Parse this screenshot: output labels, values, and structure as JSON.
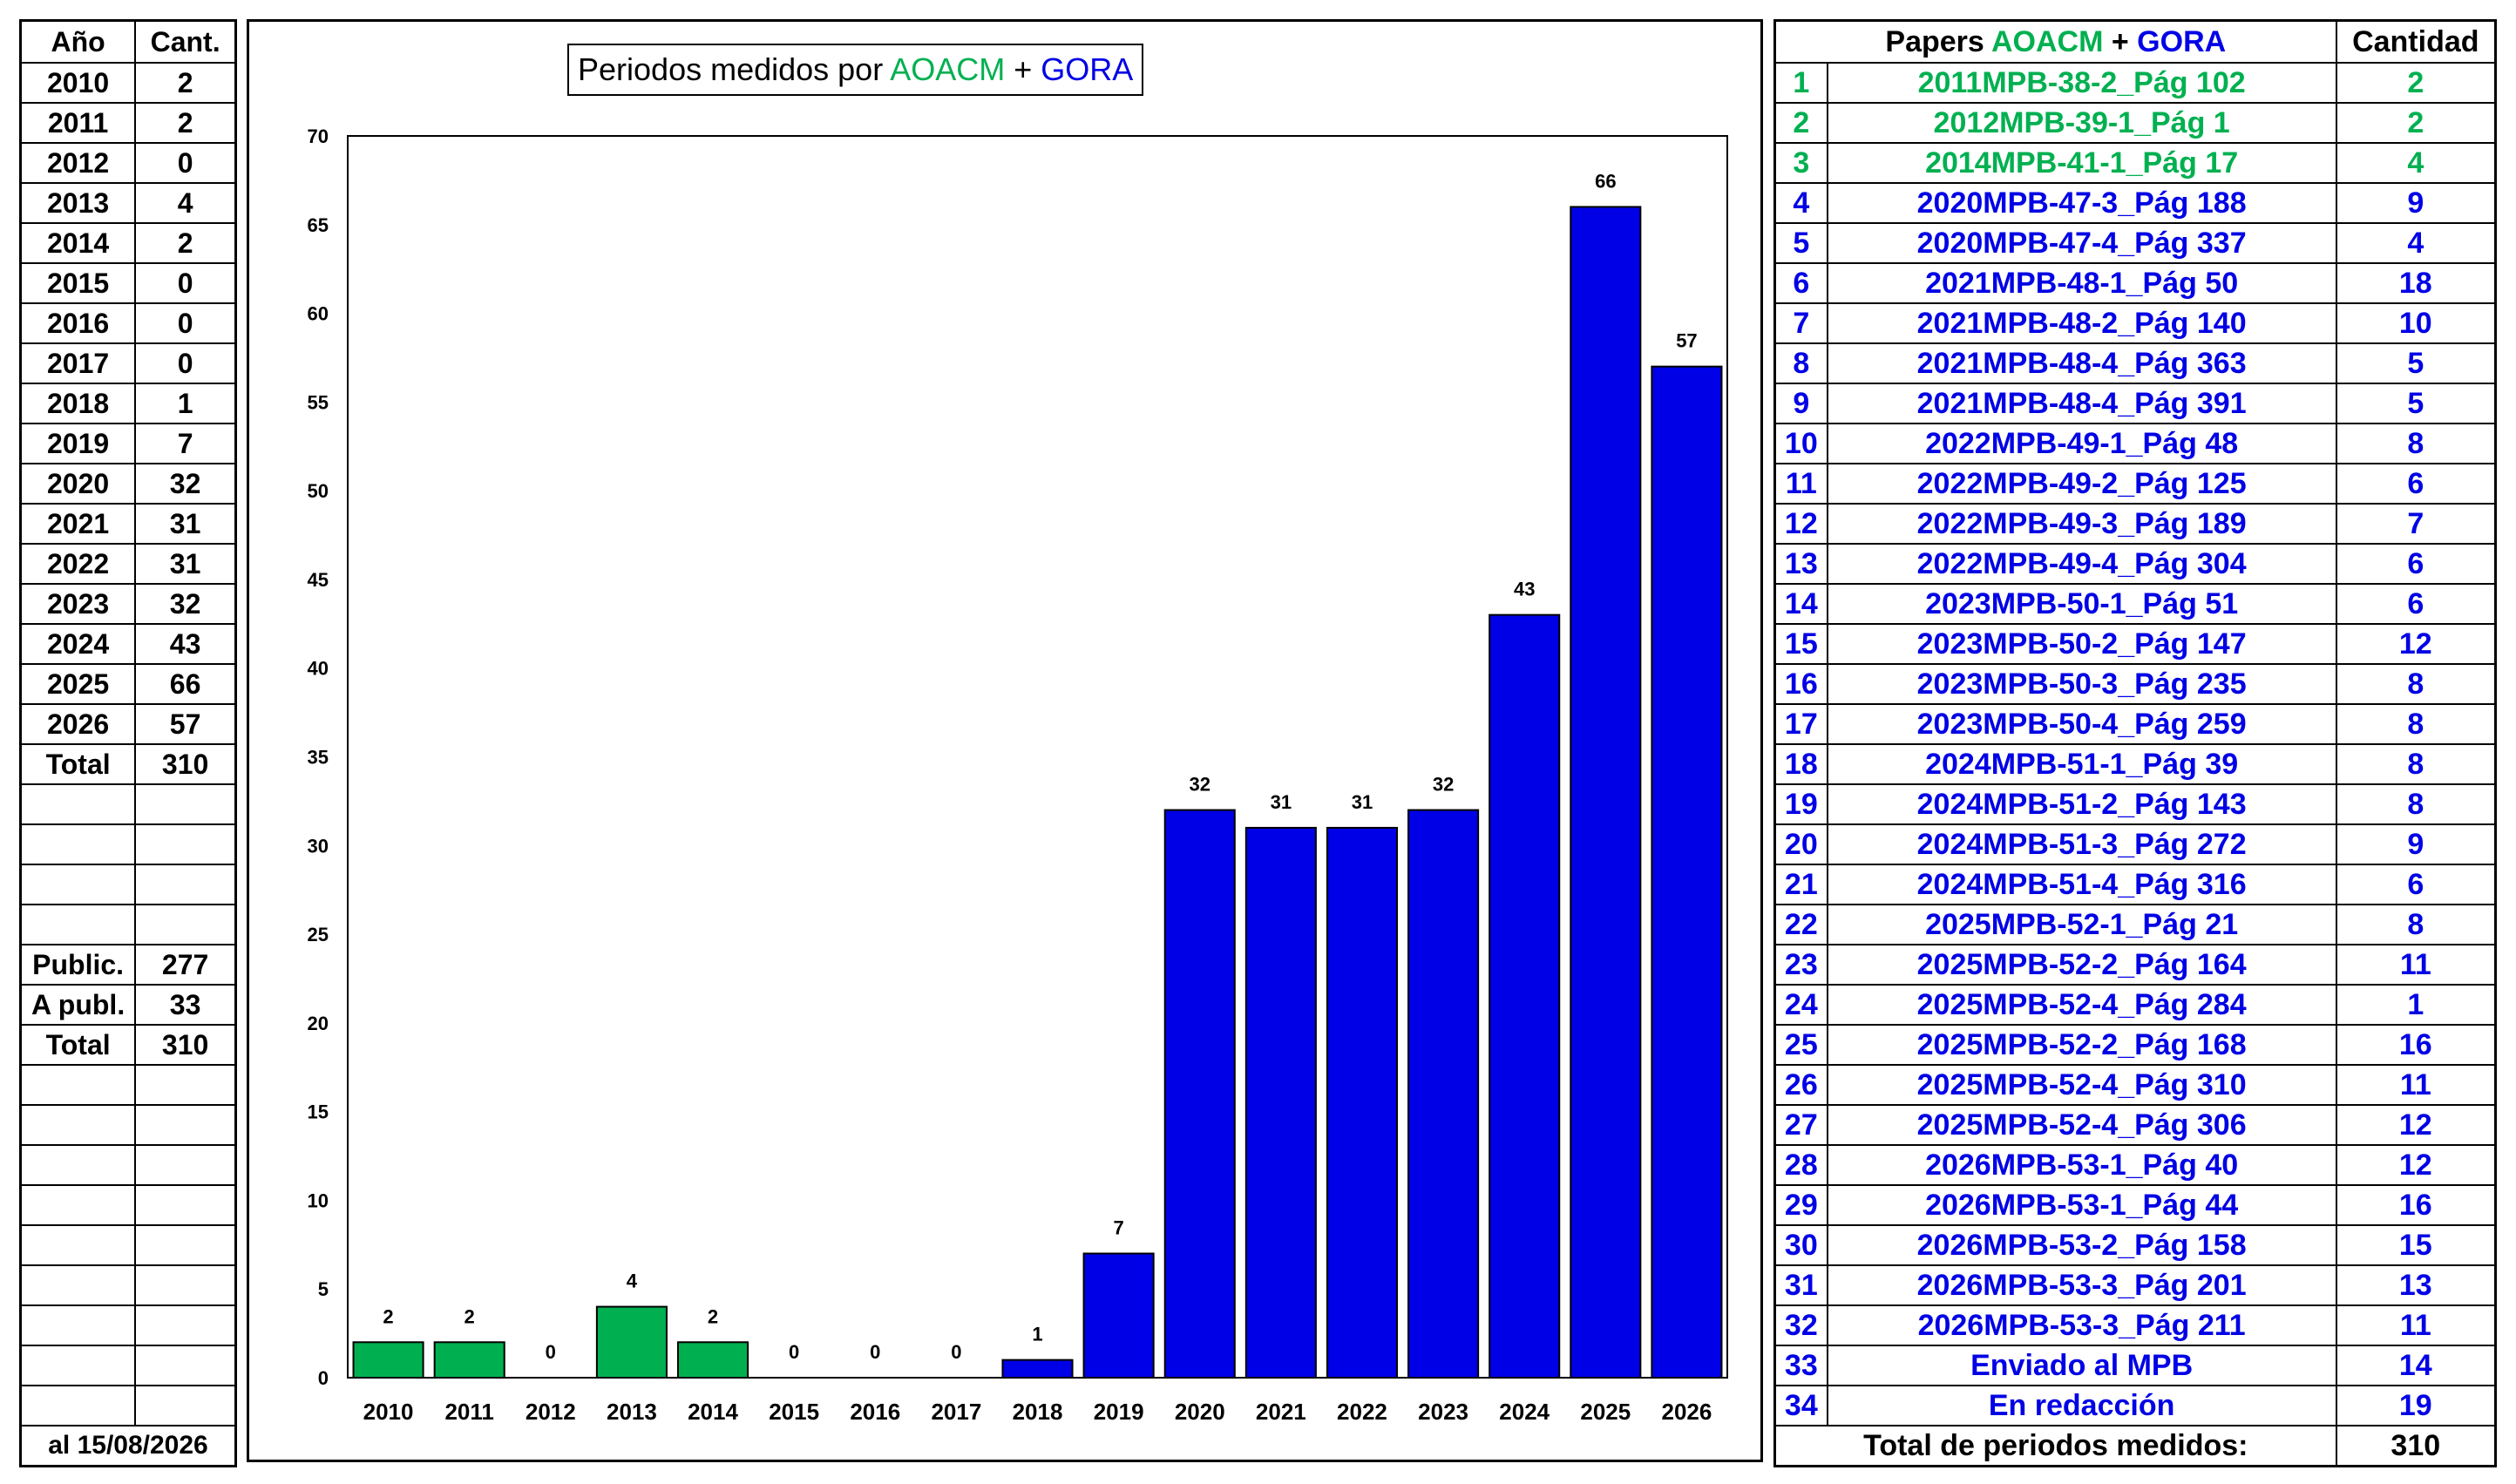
{
  "colors": {
    "aoacm": "#00b050",
    "gora": "#0000e6",
    "border": "#000000"
  },
  "left_table": {
    "headers": [
      "Año",
      "Cant."
    ],
    "rows": [
      [
        "2010",
        "2"
      ],
      [
        "2011",
        "2"
      ],
      [
        "2012",
        "0"
      ],
      [
        "2013",
        "4"
      ],
      [
        "2014",
        "2"
      ],
      [
        "2015",
        "0"
      ],
      [
        "2016",
        "0"
      ],
      [
        "2017",
        "0"
      ],
      [
        "2018",
        "1"
      ],
      [
        "2019",
        "7"
      ],
      [
        "2020",
        "32"
      ],
      [
        "2021",
        "31"
      ],
      [
        "2022",
        "31"
      ],
      [
        "2023",
        "32"
      ],
      [
        "2024",
        "43"
      ],
      [
        "2025",
        "66"
      ],
      [
        "2026",
        "57"
      ]
    ],
    "total_label": "Total",
    "total_value": "310",
    "publ_label": "Public.",
    "publ_value": "277",
    "apubl_label": "A publ.",
    "apubl_value": "33",
    "total2_label": "Total",
    "total2_value": "310",
    "footer": "al 15/08/2026"
  },
  "chart_data": {
    "type": "bar",
    "title_prefix": "Periodos medidos por ",
    "title_aoacm": "AOACM",
    "title_plus": " + ",
    "title_gora": "GORA",
    "categories": [
      "2010",
      "2011",
      "2012",
      "2013",
      "2014",
      "2015",
      "2016",
      "2017",
      "2018",
      "2019",
      "2020",
      "2021",
      "2022",
      "2023",
      "2024",
      "2025",
      "2026"
    ],
    "values": [
      2,
      2,
      0,
      4,
      2,
      0,
      0,
      0,
      1,
      7,
      32,
      31,
      31,
      32,
      43,
      66,
      57
    ],
    "bar_colors": [
      "aoacm",
      "aoacm",
      "aoacm",
      "aoacm",
      "aoacm",
      "gora",
      "gora",
      "gora",
      "gora",
      "gora",
      "gora",
      "gora",
      "gora",
      "gora",
      "gora",
      "gora",
      "gora"
    ],
    "yticks": [
      0,
      5,
      10,
      15,
      20,
      25,
      30,
      35,
      40,
      45,
      50,
      55,
      60,
      65,
      70
    ],
    "ylim": [
      0,
      70
    ],
    "grid": false,
    "xlabel": "",
    "ylabel": ""
  },
  "right_table": {
    "header_prefix": "Papers ",
    "header_aoacm": "AOACM",
    "header_plus": " + ",
    "header_gora": "GORA",
    "header_qty": "Cantidad",
    "rows": [
      {
        "n": "1",
        "paper": "2011MPB-38-2_Pág 102",
        "qty": "2",
        "color": "aoacm"
      },
      {
        "n": "2",
        "paper": "2012MPB-39-1_Pág 1",
        "qty": "2",
        "color": "aoacm"
      },
      {
        "n": "3",
        "paper": "2014MPB-41-1_Pág 17",
        "qty": "4",
        "color": "aoacm"
      },
      {
        "n": "4",
        "paper": "2020MPB-47-3_Pág 188",
        "qty": "9",
        "color": "gora"
      },
      {
        "n": "5",
        "paper": "2020MPB-47-4_Pág 337",
        "qty": "4",
        "color": "gora"
      },
      {
        "n": "6",
        "paper": "2021MPB-48-1_Pág 50",
        "qty": "18",
        "color": "gora"
      },
      {
        "n": "7",
        "paper": "2021MPB-48-2_Pág 140",
        "qty": "10",
        "color": "gora"
      },
      {
        "n": "8",
        "paper": "2021MPB-48-4_Pág 363",
        "qty": "5",
        "color": "gora"
      },
      {
        "n": "9",
        "paper": "2021MPB-48-4_Pág 391",
        "qty": "5",
        "color": "gora"
      },
      {
        "n": "10",
        "paper": "2022MPB-49-1_Pág 48",
        "qty": "8",
        "color": "gora"
      },
      {
        "n": "11",
        "paper": "2022MPB-49-2_Pág 125",
        "qty": "6",
        "color": "gora"
      },
      {
        "n": "12",
        "paper": "2022MPB-49-3_Pág 189",
        "qty": "7",
        "color": "gora"
      },
      {
        "n": "13",
        "paper": "2022MPB-49-4_Pág 304",
        "qty": "6",
        "color": "gora"
      },
      {
        "n": "14",
        "paper": "2023MPB-50-1_Pág 51",
        "qty": "6",
        "color": "gora"
      },
      {
        "n": "15",
        "paper": "2023MPB-50-2_Pág 147",
        "qty": "12",
        "color": "gora"
      },
      {
        "n": "16",
        "paper": "2023MPB-50-3_Pág 235",
        "qty": "8",
        "color": "gora"
      },
      {
        "n": "17",
        "paper": "2023MPB-50-4_Pág 259",
        "qty": "8",
        "color": "gora"
      },
      {
        "n": "18",
        "paper": "2024MPB-51-1_Pág 39",
        "qty": "8",
        "color": "gora"
      },
      {
        "n": "19",
        "paper": "2024MPB-51-2_Pág 143",
        "qty": "8",
        "color": "gora"
      },
      {
        "n": "20",
        "paper": "2024MPB-51-3_Pág 272",
        "qty": "9",
        "color": "gora"
      },
      {
        "n": "21",
        "paper": "2024MPB-51-4_Pág 316",
        "qty": "6",
        "color": "gora"
      },
      {
        "n": "22",
        "paper": "2025MPB-52-1_Pág 21",
        "qty": "8",
        "color": "gora"
      },
      {
        "n": "23",
        "paper": "2025MPB-52-2_Pág 164",
        "qty": "11",
        "color": "gora"
      },
      {
        "n": "24",
        "paper": "2025MPB-52-4_Pág 284",
        "qty": "1",
        "color": "gora"
      },
      {
        "n": "25",
        "paper": "2025MPB-52-2_Pág 168",
        "qty": "16",
        "color": "gora"
      },
      {
        "n": "26",
        "paper": "2025MPB-52-4_Pág 310",
        "qty": "11",
        "color": "gora"
      },
      {
        "n": "27",
        "paper": "2025MPB-52-4_Pág 306",
        "qty": "12",
        "color": "gora"
      },
      {
        "n": "28",
        "paper": "2026MPB-53-1_Pág 40",
        "qty": "12",
        "color": "gora"
      },
      {
        "n": "29",
        "paper": "2026MPB-53-1_Pág 44",
        "qty": "16",
        "color": "gora"
      },
      {
        "n": "30",
        "paper": "2026MPB-53-2_Pág 158",
        "qty": "15",
        "color": "gora"
      },
      {
        "n": "31",
        "paper": "2026MPB-53-3_Pág 201",
        "qty": "13",
        "color": "gora"
      },
      {
        "n": "32",
        "paper": "2026MPB-53-3_Pág 211",
        "qty": "11",
        "color": "gora"
      },
      {
        "n": "33",
        "paper": "Enviado al MPB",
        "qty": "14",
        "color": "gora"
      },
      {
        "n": "34",
        "paper": "En redacción",
        "qty": "19",
        "color": "gora"
      }
    ],
    "total_label": "Total de periodos medidos:",
    "total_value": "310"
  }
}
